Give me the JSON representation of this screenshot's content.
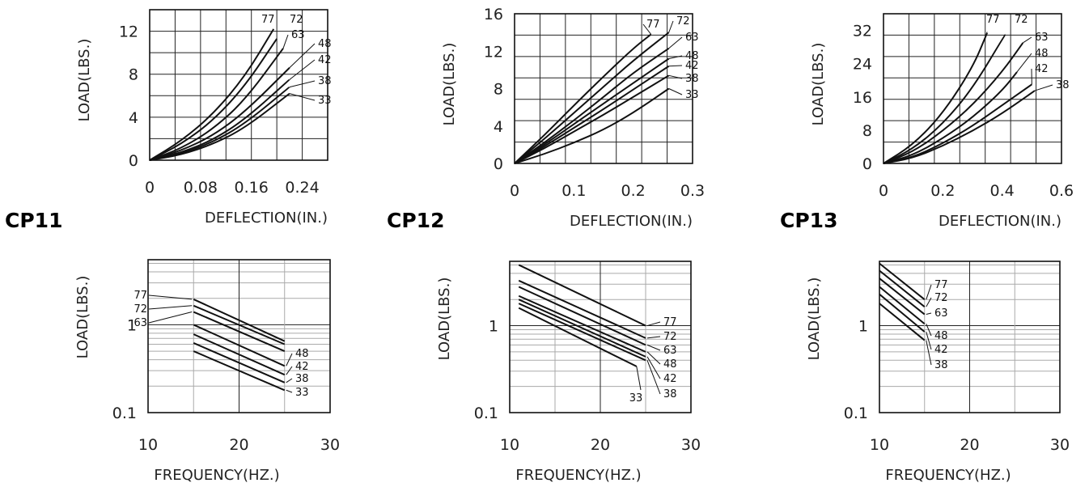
{
  "figures": [
    {
      "model": "CP11"
    },
    {
      "model": "CP12"
    },
    {
      "model": "CP13"
    }
  ],
  "chart_data": [
    {
      "type": "line",
      "model": "CP11",
      "xlabel": "DEFLECTION(IN.)",
      "ylabel": "LOAD(LBS.)",
      "xlim": [
        0,
        0.28
      ],
      "ylim": [
        0,
        14
      ],
      "xticks": [
        "0",
        "0.08",
        "0.16",
        "0.24"
      ],
      "yticks": [
        "0",
        "4",
        "8",
        "12"
      ],
      "series": [
        {
          "name": "77",
          "x": [
            0,
            0.05,
            0.1,
            0.15,
            0.195
          ],
          "y": [
            0,
            1.8,
            4.3,
            7.8,
            12.2
          ]
        },
        {
          "name": "72",
          "x": [
            0,
            0.05,
            0.1,
            0.15,
            0.2
          ],
          "y": [
            0,
            1.5,
            3.7,
            6.9,
            11.3
          ]
        },
        {
          "name": "63",
          "x": [
            0,
            0.05,
            0.1,
            0.15,
            0.21
          ],
          "y": [
            0,
            1.1,
            2.9,
            5.6,
            10.4
          ]
        },
        {
          "name": "48",
          "x": [
            0,
            0.05,
            0.1,
            0.15,
            0.22
          ],
          "y": [
            0,
            0.9,
            2.3,
            4.5,
            8.6
          ]
        },
        {
          "name": "42",
          "x": [
            0,
            0.05,
            0.1,
            0.15,
            0.22
          ],
          "y": [
            0,
            0.7,
            1.9,
            3.8,
            7.5
          ]
        },
        {
          "name": "38",
          "x": [
            0,
            0.05,
            0.1,
            0.15,
            0.22
          ],
          "y": [
            0,
            0.6,
            1.7,
            3.4,
            6.8
          ]
        },
        {
          "name": "33",
          "x": [
            0,
            0.05,
            0.1,
            0.15,
            0.22
          ],
          "y": [
            0,
            0.5,
            1.5,
            3.0,
            6.2
          ]
        }
      ]
    },
    {
      "type": "line",
      "model": "CP12",
      "xlabel": "DEFLECTION(IN.)",
      "ylabel": "LOAD(LBS.)",
      "xlim": [
        0,
        0.3
      ],
      "ylim": [
        0,
        16
      ],
      "xticks": [
        "0",
        "0.1",
        "0.2",
        "0.3"
      ],
      "yticks": [
        "0",
        "4",
        "8",
        "12",
        "16"
      ],
      "series": [
        {
          "name": "77",
          "x": [
            0,
            0.05,
            0.1,
            0.15,
            0.2,
            0.23
          ],
          "y": [
            0,
            3.0,
            6.2,
            9.3,
            12.3,
            13.8
          ]
        },
        {
          "name": "72",
          "x": [
            0,
            0.05,
            0.1,
            0.15,
            0.2,
            0.26
          ],
          "y": [
            0,
            2.6,
            5.4,
            8.2,
            11.0,
            14.0
          ]
        },
        {
          "name": "63",
          "x": [
            0,
            0.05,
            0.1,
            0.15,
            0.2,
            0.26
          ],
          "y": [
            0,
            2.2,
            4.6,
            7.1,
            9.7,
            12.3
          ]
        },
        {
          "name": "48",
          "x": [
            0,
            0.05,
            0.1,
            0.15,
            0.2,
            0.26
          ],
          "y": [
            0,
            2.0,
            4.2,
            6.4,
            8.6,
            11.2
          ]
        },
        {
          "name": "42",
          "x": [
            0,
            0.05,
            0.1,
            0.15,
            0.2,
            0.26
          ],
          "y": [
            0,
            1.8,
            3.8,
            5.8,
            7.9,
            10.4
          ]
        },
        {
          "name": "38",
          "x": [
            0,
            0.05,
            0.1,
            0.15,
            0.2,
            0.26
          ],
          "y": [
            0,
            1.6,
            3.4,
            5.2,
            7.1,
            9.4
          ]
        },
        {
          "name": "33",
          "x": [
            0,
            0.05,
            0.1,
            0.15,
            0.2,
            0.26
          ],
          "y": [
            0,
            1.0,
            2.2,
            3.6,
            5.4,
            8.0
          ]
        }
      ]
    },
    {
      "type": "line",
      "model": "CP13",
      "xlabel": "DEFLECTION(IN.)",
      "ylabel": "LOAD(LBS.)",
      "xlim": [
        0,
        0.6
      ],
      "ylim": [
        0,
        36
      ],
      "xticks": [
        "0",
        "0.2",
        "0.4",
        "0.6"
      ],
      "yticks": [
        "0",
        "8",
        "16",
        "24",
        "32"
      ],
      "series": [
        {
          "name": "77",
          "x": [
            0,
            0.1,
            0.2,
            0.3,
            0.35
          ],
          "y": [
            0,
            4.5,
            12.0,
            23.0,
            31.5
          ]
        },
        {
          "name": "72",
          "x": [
            0,
            0.1,
            0.2,
            0.3,
            0.41
          ],
          "y": [
            0,
            3.5,
            9.5,
            18.0,
            31.0
          ]
        },
        {
          "name": "63",
          "x": [
            0,
            0.1,
            0.2,
            0.3,
            0.4,
            0.47
          ],
          "y": [
            0,
            2.8,
            7.8,
            14.0,
            22.0,
            29.0
          ]
        },
        {
          "name": "48",
          "x": [
            0,
            0.1,
            0.2,
            0.3,
            0.4,
            0.45
          ],
          "y": [
            0,
            2.0,
            6.0,
            11.0,
            17.5,
            22.0
          ]
        },
        {
          "name": "42",
          "x": [
            0,
            0.1,
            0.2,
            0.3,
            0.4,
            0.5
          ],
          "y": [
            0,
            1.5,
            4.8,
            9.0,
            14.0,
            19.0
          ]
        },
        {
          "name": "38",
          "x": [
            0,
            0.1,
            0.2,
            0.3,
            0.4,
            0.51
          ],
          "y": [
            0,
            1.3,
            4.2,
            7.8,
            12.0,
            17.5
          ]
        }
      ]
    },
    {
      "type": "line",
      "model": "CP11",
      "xlabel": "FREQUENCY(HZ.)",
      "ylabel": "LOAD(LBS.)",
      "xlim": [
        10,
        30
      ],
      "ylim": [
        0.1,
        5.5
      ],
      "yscale": "log",
      "xticks": [
        "10",
        "20",
        "30"
      ],
      "yticks": [
        "0.1",
        "1"
      ],
      "series": [
        {
          "name": "77",
          "x": [
            15,
            25
          ],
          "y": [
            1.95,
            0.65
          ]
        },
        {
          "name": "72",
          "x": [
            15,
            25
          ],
          "y": [
            1.65,
            0.6
          ]
        },
        {
          "name": "63",
          "x": [
            15,
            25
          ],
          "y": [
            1.4,
            0.5
          ]
        },
        {
          "name": "48",
          "x": [
            15,
            25
          ],
          "y": [
            1.0,
            0.34
          ]
        },
        {
          "name": "42",
          "x": [
            15,
            25
          ],
          "y": [
            0.78,
            0.27
          ]
        },
        {
          "name": "38",
          "x": [
            15,
            25
          ],
          "y": [
            0.62,
            0.22
          ]
        },
        {
          "name": "33",
          "x": [
            15,
            25
          ],
          "y": [
            0.5,
            0.18
          ]
        }
      ]
    },
    {
      "type": "line",
      "model": "CP12",
      "xlabel": "FREQUENCY(HZ.)",
      "ylabel": "LOAD(LBS.)",
      "xlim": [
        10,
        30
      ],
      "ylim": [
        0.1,
        5.5
      ],
      "yscale": "log",
      "xticks": [
        "10",
        "20",
        "30"
      ],
      "yticks": [
        "0.1",
        "1"
      ],
      "series": [
        {
          "name": "77",
          "x": [
            11,
            25
          ],
          "y": [
            5.0,
            1.0
          ]
        },
        {
          "name": "72",
          "x": [
            11,
            25
          ],
          "y": [
            3.3,
            0.72
          ]
        },
        {
          "name": "63",
          "x": [
            11,
            25
          ],
          "y": [
            2.8,
            0.6
          ]
        },
        {
          "name": "48",
          "x": [
            11,
            25
          ],
          "y": [
            2.2,
            0.5
          ]
        },
        {
          "name": "42",
          "x": [
            11,
            25
          ],
          "y": [
            2.0,
            0.44
          ]
        },
        {
          "name": "38",
          "x": [
            11,
            25
          ],
          "y": [
            1.8,
            0.4
          ]
        },
        {
          "name": "33",
          "x": [
            11,
            24
          ],
          "y": [
            1.6,
            0.34
          ]
        }
      ]
    },
    {
      "type": "line",
      "model": "CP13",
      "xlabel": "FREQUENCY(HZ.)",
      "ylabel": "LOAD(LBS.)",
      "xlim": [
        10,
        30
      ],
      "ylim": [
        0.1,
        5.5
      ],
      "yscale": "log",
      "xticks": [
        "10",
        "20",
        "30"
      ],
      "yticks": [
        "0.1",
        "1"
      ],
      "series": [
        {
          "name": "77",
          "x": [
            10,
            15
          ],
          "y": [
            5.2,
            2.0
          ]
        },
        {
          "name": "72",
          "x": [
            10,
            15
          ],
          "y": [
            4.3,
            1.65
          ]
        },
        {
          "name": "63",
          "x": [
            10,
            15
          ],
          "y": [
            3.5,
            1.35
          ]
        },
        {
          "name": "48",
          "x": [
            10,
            15
          ],
          "y": [
            2.8,
            1.05
          ]
        },
        {
          "name": "42",
          "x": [
            10,
            15
          ],
          "y": [
            2.3,
            0.85
          ]
        },
        {
          "name": "38",
          "x": [
            10,
            15
          ],
          "y": [
            1.8,
            0.68
          ]
        }
      ]
    }
  ]
}
